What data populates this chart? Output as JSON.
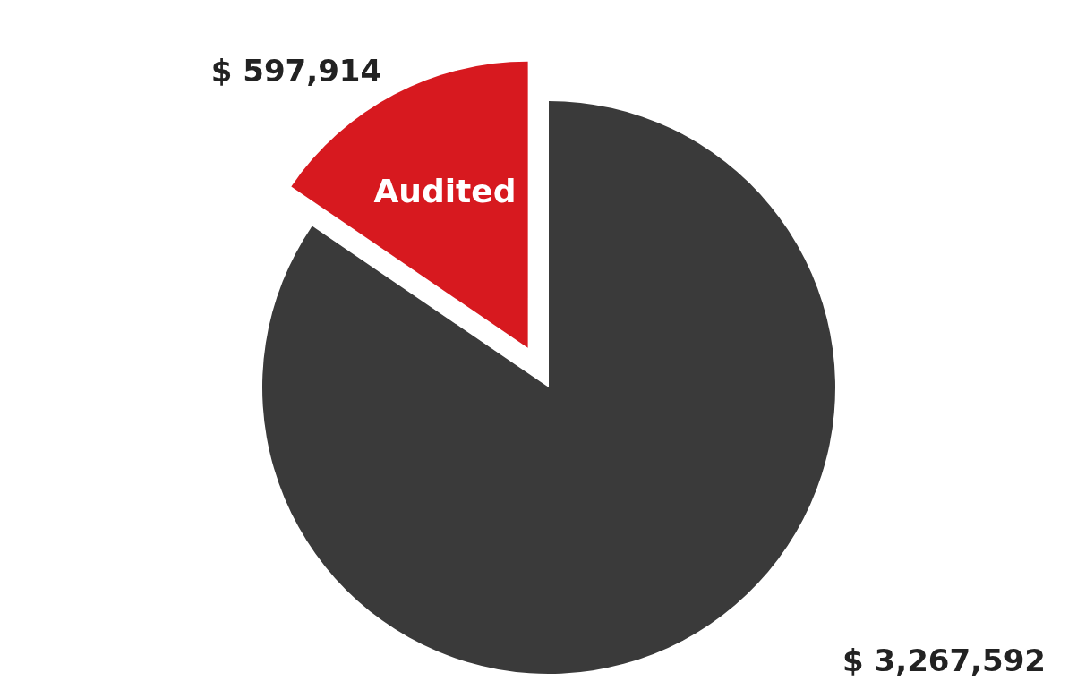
{
  "chart_data": {
    "type": "pie",
    "categories": [
      "Audited",
      null
    ],
    "values": [
      597914,
      3267592
    ],
    "colors": [
      "#d7191f",
      "#3a3a3a"
    ],
    "value_labels": [
      "$ 597,914",
      "$ 3,267,592"
    ],
    "legend": false
  }
}
